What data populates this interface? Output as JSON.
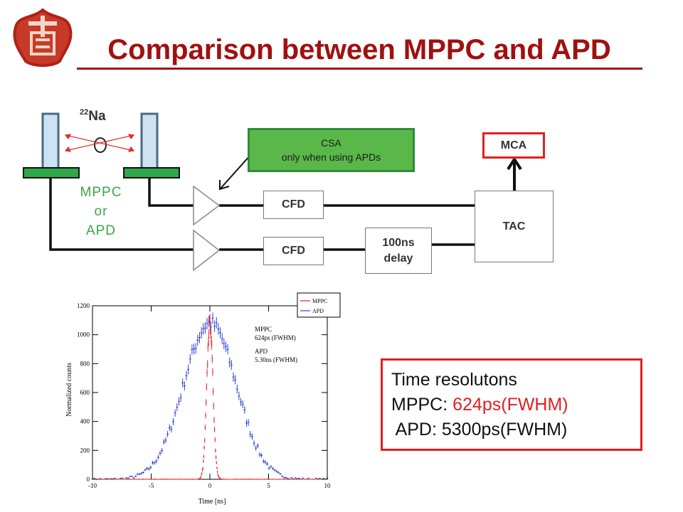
{
  "slide": {
    "title": "Comparison between MPPC and APD"
  },
  "diagram": {
    "source_label_sup": "22",
    "source_label": "Na",
    "detector_label_lines": [
      "MPPC",
      "or",
      "APD"
    ],
    "csa_lines": [
      "CSA",
      "only when using APDs"
    ],
    "mca_label": "MCA",
    "tac_label": "TAC",
    "cfd_top_label": "CFD",
    "cfd_bottom_label": "CFD",
    "delay_lines": [
      "100ns",
      "delay"
    ],
    "colors": {
      "detector_fill": "#cde3f2",
      "detector_base": "#2ea84a",
      "csa_fill": "#5ab84a",
      "mca_border": "#e02020",
      "arrow_red": "#e03030"
    }
  },
  "results": {
    "heading": "Time resolutons",
    "mppc_prefix": "MPPC: ",
    "mppc_value": "624ps(FWHM)",
    "apd_line": " APD: 5300ps(FWHM)"
  },
  "chart_data": {
    "type": "scatter",
    "xlabel": "Time [ns]",
    "ylabel": "Normalized counts",
    "xlim": [
      -10,
      10
    ],
    "ylim": [
      0,
      1200
    ],
    "xticks": [
      "-10",
      "-5",
      "0",
      "5",
      "10"
    ],
    "yticks": [
      "0",
      "200",
      "400",
      "600",
      "800",
      "1000",
      "1200"
    ],
    "legend_position": "top-right",
    "annotations": [
      "MPPC",
      "624ps (FWHM)",
      "APD",
      "5.30ns (FWHM)"
    ],
    "series": [
      {
        "name": "MPPC",
        "color": "#e02020",
        "fwhm_ns": 0.624,
        "peak": 1080
      },
      {
        "name": "APD",
        "color": "#2a3ed8",
        "fwhm_ns": 5.3,
        "peak": 1080
      }
    ]
  }
}
